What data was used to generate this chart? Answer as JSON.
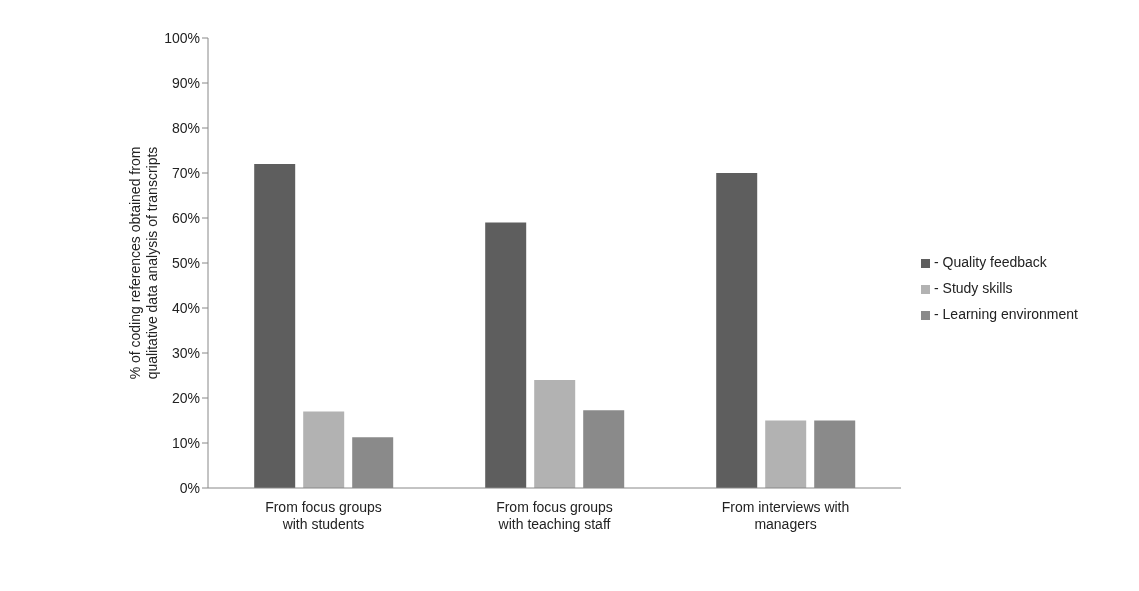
{
  "chart_data": {
    "type": "bar",
    "ylabel": "% of coding references obtained from qualitative data analysis of transcripts",
    "categories": [
      "From focus groups with students",
      "From focus groups with teaching staff",
      "From interviews with managers"
    ],
    "series": [
      {
        "name": "- Quality feedback",
        "color": "#5e5e5e",
        "values": [
          72,
          59,
          70
        ]
      },
      {
        "name": "- Study skills",
        "color": "#b2b2b2",
        "values": [
          17,
          24,
          15
        ]
      },
      {
        "name": "- Learning environment",
        "color": "#8a8a8a",
        "values": [
          11.3,
          17.3,
          15
        ]
      }
    ],
    "ylim": [
      0,
      100
    ],
    "yticks": [
      {
        "value": 0,
        "label": "0%"
      },
      {
        "value": 10,
        "label": "10%"
      },
      {
        "value": 20,
        "label": "20%"
      },
      {
        "value": 30,
        "label": "30%"
      },
      {
        "value": 40,
        "label": "40%"
      },
      {
        "value": 50,
        "label": "50%"
      },
      {
        "value": 60,
        "label": "60%"
      },
      {
        "value": 70,
        "label": "70%"
      },
      {
        "value": 80,
        "label": "80%"
      },
      {
        "value": 90,
        "label": "90%"
      },
      {
        "value": 100,
        "label": "100%"
      }
    ],
    "grid": false,
    "legend": "right"
  }
}
